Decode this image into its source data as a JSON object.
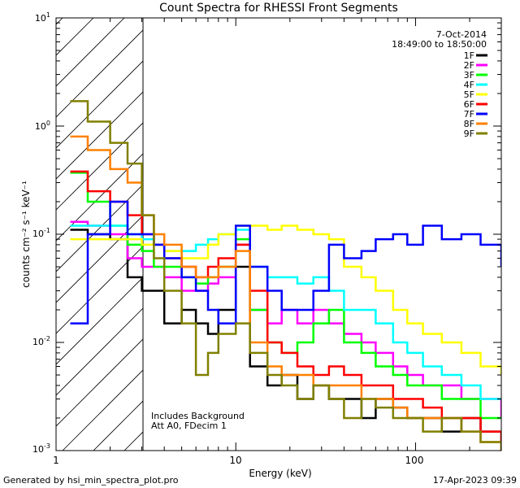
{
  "chart_data": {
    "type": "line",
    "title": "Count Spectra for RHESSI Front Segments",
    "xlabel": "Energy (keV)",
    "ylabel": "counts cm⁻² s⁻¹ keV⁻¹",
    "xscale": "log",
    "yscale": "log",
    "xlim": [
      1,
      300
    ],
    "ylim": [
      0.001,
      10
    ],
    "x_tick_labels": [
      "1",
      "10",
      "100"
    ],
    "y_tick_labels": [
      {
        "base": "10",
        "exp": "-3"
      },
      {
        "base": "10",
        "exp": "-2"
      },
      {
        "base": "10",
        "exp": "-1"
      },
      {
        "base": "10",
        "exp": "0"
      },
      {
        "base": "10",
        "exp": "1"
      }
    ],
    "excluded_region": {
      "from": 1,
      "to": 3,
      "note": "hatched low-energy region"
    },
    "annotations": {
      "date": "7-Oct-2014",
      "time_range": "18:49:00 to 18:50:00",
      "background_note": "Includes Background",
      "attenuator_note": "Att A0, FDecim 1"
    },
    "legend_position": "top-right",
    "series": [
      {
        "name": "1F",
        "color": "#000000",
        "x": [
          1.2,
          1.5,
          2,
          2.5,
          3,
          3.5,
          4,
          5,
          6,
          7,
          8,
          10,
          12,
          15,
          18,
          22,
          27,
          33,
          40,
          50,
          60,
          75,
          90,
          110,
          140,
          180,
          230,
          300
        ],
        "y": [
          0.11,
          0.1,
          0.09,
          0.04,
          0.03,
          0.03,
          0.015,
          0.02,
          0.015,
          0.012,
          0.02,
          0.05,
          0.006,
          0.004,
          0.005,
          0.003,
          0.004,
          0.003,
          0.003,
          0.002,
          0.003,
          0.0025,
          0.002,
          0.002,
          0.0015,
          0.002,
          0.0015,
          0.001
        ]
      },
      {
        "name": "2F",
        "color": "#ff00ff",
        "x": [
          1.2,
          1.5,
          2,
          2.5,
          3,
          3.5,
          4,
          5,
          6,
          7,
          8,
          10,
          12,
          15,
          18,
          22,
          27,
          33,
          40,
          50,
          60,
          75,
          90,
          110,
          140,
          180,
          230,
          300
        ],
        "y": [
          0.13,
          0.12,
          0.1,
          0.06,
          0.05,
          0.05,
          0.04,
          0.03,
          0.03,
          0.035,
          0.04,
          0.08,
          0.02,
          0.015,
          0.02,
          0.015,
          0.02,
          0.015,
          0.012,
          0.01,
          0.008,
          0.006,
          0.005,
          0.004,
          0.004,
          0.003,
          0.003,
          0.002
        ]
      },
      {
        "name": "3F",
        "color": "#00ff00",
        "x": [
          1.2,
          1.5,
          2,
          2.5,
          3,
          3.5,
          4,
          5,
          6,
          7,
          8,
          10,
          12,
          15,
          18,
          22,
          27,
          33,
          40,
          50,
          60,
          75,
          90,
          110,
          140,
          180,
          230,
          300
        ],
        "y": [
          0.37,
          0.2,
          0.12,
          0.08,
          0.07,
          0.05,
          0.05,
          0.04,
          0.035,
          0.04,
          0.05,
          0.09,
          0.02,
          0.01,
          0.008,
          0.01,
          0.015,
          0.02,
          0.01,
          0.008,
          0.006,
          0.005,
          0.004,
          0.004,
          0.003,
          0.003,
          0.002,
          0.002
        ]
      },
      {
        "name": "4F",
        "color": "#00ffff",
        "x": [
          1.2,
          1.5,
          2,
          2.5,
          3,
          3.5,
          4,
          5,
          6,
          7,
          8,
          10,
          12,
          15,
          18,
          22,
          27,
          33,
          40,
          50,
          60,
          75,
          90,
          110,
          140,
          180,
          230,
          300
        ],
        "y": [
          0.12,
          0.12,
          0.12,
          0.1,
          0.09,
          0.08,
          0.07,
          0.07,
          0.08,
          0.09,
          0.1,
          0.11,
          0.05,
          0.04,
          0.04,
          0.035,
          0.04,
          0.03,
          0.02,
          0.02,
          0.015,
          0.01,
          0.008,
          0.006,
          0.005,
          0.004,
          0.003,
          0.003
        ]
      },
      {
        "name": "5F",
        "color": "#ffff00",
        "x": [
          1.2,
          1.5,
          2,
          2.5,
          3,
          3.5,
          4,
          5,
          6,
          7,
          8,
          10,
          12,
          15,
          18,
          22,
          27,
          33,
          40,
          50,
          60,
          75,
          90,
          110,
          140,
          180,
          230,
          300
        ],
        "y": [
          0.09,
          0.09,
          0.09,
          0.09,
          0.08,
          0.08,
          0.07,
          0.06,
          0.06,
          0.08,
          0.1,
          0.12,
          0.12,
          0.11,
          0.12,
          0.11,
          0.1,
          0.09,
          0.05,
          0.04,
          0.03,
          0.02,
          0.015,
          0.012,
          0.01,
          0.008,
          0.006,
          0.005
        ]
      },
      {
        "name": "6F",
        "color": "#ff0000",
        "x": [
          1.2,
          1.5,
          2,
          2.5,
          3,
          3.5,
          4,
          5,
          6,
          7,
          8,
          10,
          12,
          15,
          18,
          22,
          27,
          33,
          40,
          50,
          60,
          75,
          90,
          110,
          140,
          180,
          230,
          300
        ],
        "y": [
          0.38,
          0.25,
          0.2,
          0.15,
          0.1,
          0.08,
          0.06,
          0.05,
          0.04,
          0.05,
          0.06,
          0.08,
          0.03,
          0.01,
          0.008,
          0.006,
          0.005,
          0.006,
          0.005,
          0.004,
          0.004,
          0.003,
          0.003,
          0.0025,
          0.002,
          0.002,
          0.0015,
          0.0012
        ]
      },
      {
        "name": "7F",
        "color": "#0000ff",
        "x": [
          1.2,
          1.5,
          2,
          2.5,
          3,
          3.5,
          4,
          5,
          6,
          7,
          8,
          10,
          12,
          15,
          18,
          22,
          27,
          33,
          40,
          50,
          60,
          75,
          90,
          110,
          140,
          180,
          230,
          300
        ],
        "y": [
          0.015,
          0.1,
          0.2,
          0.1,
          0.1,
          0.08,
          0.06,
          0.04,
          0.03,
          0.02,
          0.015,
          0.12,
          0.05,
          0.03,
          0.02,
          0.02,
          0.03,
          0.08,
          0.06,
          0.07,
          0.09,
          0.1,
          0.08,
          0.12,
          0.09,
          0.1,
          0.08,
          0.05
        ]
      },
      {
        "name": "8F",
        "color": "#ff8000",
        "x": [
          1.2,
          1.5,
          2,
          2.5,
          3,
          3.5,
          4,
          5,
          6,
          7,
          8,
          10,
          12,
          15,
          18,
          22,
          27,
          33,
          40,
          50,
          60,
          75,
          90,
          110,
          140,
          180,
          230,
          300
        ],
        "y": [
          0.8,
          0.6,
          0.4,
          0.3,
          0.15,
          0.1,
          0.08,
          0.05,
          0.04,
          0.04,
          0.05,
          0.07,
          0.01,
          0.006,
          0.005,
          0.005,
          0.004,
          0.004,
          0.004,
          0.003,
          0.003,
          0.0025,
          0.002,
          0.002,
          0.002,
          0.0015,
          0.0012,
          0.001
        ]
      },
      {
        "name": "9F",
        "color": "#808000",
        "x": [
          1.2,
          1.5,
          2,
          2.5,
          3,
          3.5,
          4,
          5,
          6,
          7,
          8,
          10,
          12,
          15,
          18,
          22,
          27,
          33,
          40,
          50,
          60,
          75,
          90,
          110,
          140,
          180,
          230,
          300
        ],
        "y": [
          1.7,
          1.1,
          0.7,
          0.45,
          0.15,
          0.06,
          0.03,
          0.015,
          0.005,
          0.008,
          0.012,
          0.015,
          0.008,
          0.005,
          0.004,
          0.003,
          0.004,
          0.003,
          0.002,
          0.003,
          0.0025,
          0.002,
          0.002,
          0.0015,
          0.002,
          0.0015,
          0.0012,
          0.001
        ]
      }
    ]
  },
  "footer": {
    "generator": "Generated by hsi_min_spectra_plot.pro",
    "timestamp": "17-Apr-2023 09:39"
  }
}
